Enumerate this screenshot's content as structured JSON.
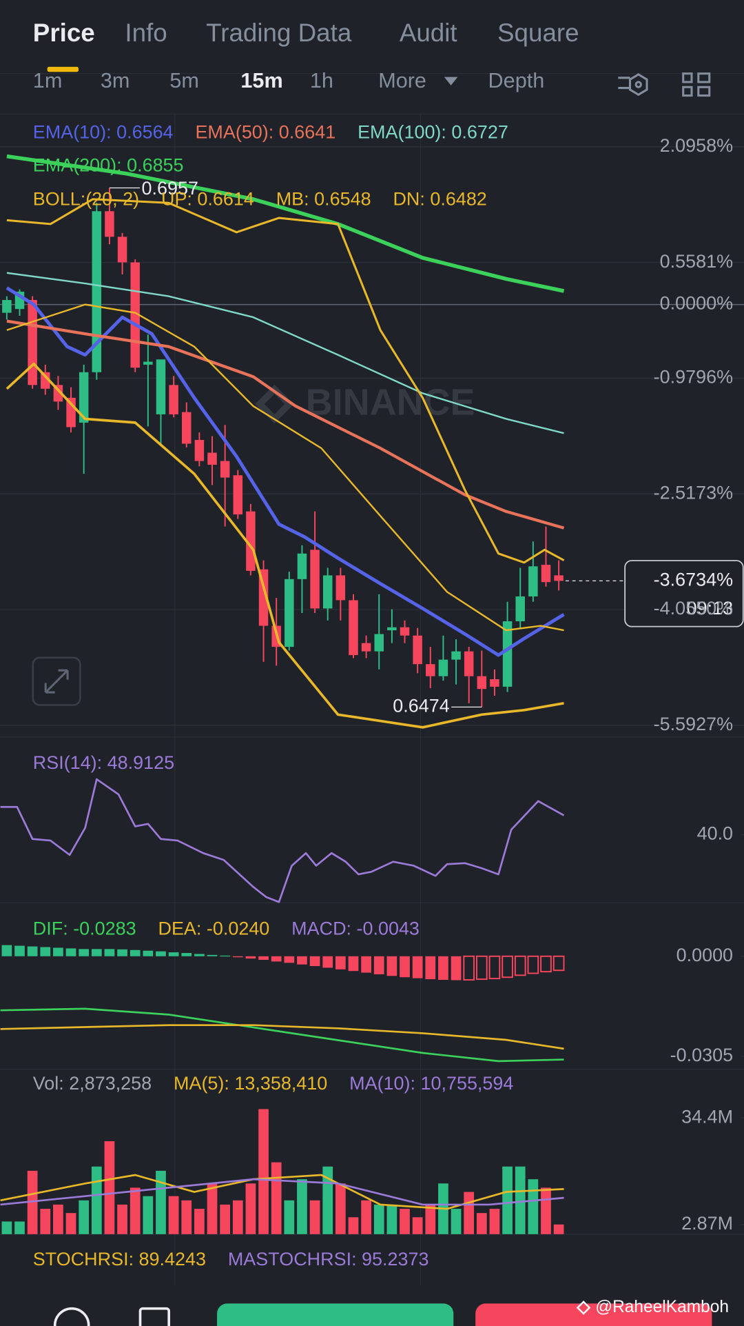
{
  "tabs": [
    "Price",
    "Info",
    "Trading Data",
    "Audit",
    "Square"
  ],
  "intervals": [
    "1m",
    "3m",
    "5m",
    "15m",
    "1h",
    "More",
    "Depth"
  ],
  "watermark": "BINANCE",
  "credit": "@RaheelKamboh",
  "stoch_legend": [
    {
      "text": "STOCHRSI: 89.4243",
      "color": "#e8b82a"
    },
    {
      "text": "MASTOCHRSI: 95.2373",
      "color": "#9b7ad8"
    }
  ],
  "chart_data": [
    {
      "type": "candlestick",
      "xlim": [
        -0.53,
        57.43
      ],
      "ylim": [
        -5.75,
        2.53
      ],
      "grid": true,
      "yticks": [
        {
          "value": 2.0958,
          "label": "2.0958%"
        },
        {
          "value": 0.5581,
          "label": "0.5581%"
        },
        {
          "value": 0,
          "label": "0.0000%"
        },
        {
          "value": -0.9796,
          "label": "-0.9796%"
        },
        {
          "value": -2.5173,
          "label": "-2.5173%"
        },
        {
          "value": -4.055,
          "label": "-4.0550%"
        },
        {
          "value": -5.5927,
          "label": "-5.5927%"
        }
      ],
      "up_color": "#2ebd85",
      "down_color": "#f6465d",
      "candles": [
        [
          -0.11,
          0.11,
          -0.2,
          0.06
        ],
        [
          -0.06,
          0.2,
          -0.15,
          0.17
        ],
        [
          0.06,
          0.11,
          -1.12,
          -1.07
        ],
        [
          -0.9,
          -0.8,
          -1.2,
          -1.12
        ],
        [
          -1.07,
          -0.95,
          -1.4,
          -1.29
        ],
        [
          -1.24,
          -1.1,
          -1.7,
          -1.63
        ],
        [
          -1.57,
          -0.8,
          -2.25,
          -0.9
        ],
        [
          -0.9,
          1.35,
          -1.0,
          1.24
        ],
        [
          1.24,
          1.55,
          0.8,
          0.9
        ],
        [
          0.9,
          0.95,
          0.4,
          0.56
        ],
        [
          0.56,
          0.6,
          -0.9,
          -0.84
        ],
        [
          -0.8,
          -0.4,
          -1.62,
          -0.76
        ],
        [
          -1.46,
          -0.75,
          -1.85,
          -0.73
        ],
        [
          -1.07,
          -0.95,
          -1.5,
          -1.46
        ],
        [
          -1.43,
          -1.3,
          -1.9,
          -1.85
        ],
        [
          -1.8,
          -1.7,
          -2.15,
          -2.08
        ],
        [
          -1.97,
          -1.75,
          -2.4,
          -2.13
        ],
        [
          -2.08,
          -1.6,
          -2.95,
          -2.3
        ],
        [
          -2.27,
          -2.2,
          -2.85,
          -2.79
        ],
        [
          -2.75,
          -2.65,
          -3.6,
          -3.54
        ],
        [
          -3.52,
          -3.4,
          -4.75,
          -4.27
        ],
        [
          -4.27,
          -3.9,
          -4.8,
          -4.55
        ],
        [
          -4.55,
          -3.55,
          -4.6,
          -3.65
        ],
        [
          -3.65,
          -3.2,
          -4.1,
          -3.31
        ],
        [
          -3.26,
          -2.75,
          -4.1,
          -4.04
        ],
        [
          -4.04,
          -3.5,
          -4.2,
          -3.6
        ],
        [
          -3.6,
          -3.5,
          -4.2,
          -3.93
        ],
        [
          -3.93,
          -3.85,
          -4.7,
          -4.66
        ],
        [
          -4.5,
          -4.4,
          -4.7,
          -4.61
        ],
        [
          -4.61,
          -3.85,
          -4.85,
          -4.38
        ],
        [
          -4.33,
          -4.05,
          -4.5,
          -4.29
        ],
        [
          -4.29,
          -4.2,
          -4.5,
          -4.4
        ],
        [
          -4.4,
          -4.3,
          -4.9,
          -4.78
        ],
        [
          -4.78,
          -4.55,
          -5.1,
          -4.94
        ],
        [
          -4.94,
          -4.4,
          -5.0,
          -4.72
        ],
        [
          -4.72,
          -4.45,
          -5.05,
          -4.61
        ],
        [
          -4.61,
          -4.55,
          -5.3,
          -4.94
        ],
        [
          -4.94,
          -4.6,
          -5.35,
          -5.11
        ],
        [
          -4.98,
          -4.85,
          -5.2,
          -5.08
        ],
        [
          -5.08,
          -3.95,
          -5.15,
          -4.21
        ],
        [
          -4.21,
          -3.5,
          -4.3,
          -3.88
        ],
        [
          -3.88,
          -3.15,
          -3.95,
          -3.48
        ],
        [
          -3.46,
          -2.95,
          -3.75,
          -3.69
        ],
        [
          -3.6,
          -3.4,
          -3.8,
          -3.6734
        ]
      ],
      "series": [
        {
          "name": "EMA(10): 0.6564",
          "color": "#5563e8",
          "x": [
            0,
            2.1,
            4.7,
            6.1,
            9.0,
            11.3,
            14.6,
            17.9,
            21.2,
            23.2,
            25.8,
            29.1,
            32.4,
            35.7,
            38.3,
            40.3,
            43.4
          ],
          "values": [
            0.22,
            0,
            -0.56,
            -0.67,
            -0.17,
            -0.39,
            -1.24,
            -2.02,
            -2.92,
            -3.09,
            -3.37,
            -3.71,
            -4.04,
            -4.38,
            -4.66,
            -4.44,
            -4.12
          ]
        },
        {
          "name": "EMA(50): 0.6641",
          "color": "#e8735a",
          "x": [
            0,
            6.1,
            12.6,
            19.2,
            22.5,
            29.1,
            35.7,
            38.9,
            43.4
          ],
          "values": [
            -0.22,
            -0.39,
            -0.56,
            -0.96,
            -1.35,
            -1.91,
            -2.53,
            -2.75,
            -2.97
          ]
        },
        {
          "name": "EMA(100): 0.6727",
          "color": "#7fd8c8",
          "x": [
            0,
            6.1,
            12.6,
            19.2,
            25.8,
            32.4,
            38.9,
            43.4
          ],
          "values": [
            0.42,
            0.28,
            0.11,
            -0.17,
            -0.67,
            -1.18,
            -1.52,
            -1.71
          ]
        },
        {
          "name": "EMA(200): 0.6855",
          "color": "#3cd15b",
          "x": [
            0,
            9.3,
            19.2,
            25.8,
            32.4,
            38.9,
            43.4
          ],
          "values": [
            1.97,
            1.74,
            1.4,
            1.07,
            0.62,
            0.34,
            0.18
          ]
        },
        {
          "name": "UP: 0.6614",
          "color": "#e8b82a",
          "x": [
            0,
            3.4,
            6.7,
            12.6,
            17.9,
            21.2,
            25.8,
            29.1,
            32.4,
            35.7,
            38.3,
            40.3,
            41.9,
            43.4
          ],
          "values": [
            1.12,
            1.07,
            1.4,
            1.35,
            0.96,
            1.15,
            1.07,
            -0.34,
            -1.24,
            -2.47,
            -3.31,
            -3.43,
            -3.26,
            -3.4
          ]
        },
        {
          "name": "MB: 0.6548",
          "color": "#e8b82a",
          "x": [
            0,
            6.1,
            10,
            14.6,
            19.2,
            24.5,
            29.1,
            34.3,
            38.9,
            41.6,
            43.4
          ],
          "values": [
            -0.34,
            0,
            -0.11,
            -0.56,
            -1.35,
            -1.91,
            -2.81,
            -3.82,
            -4.33,
            -4.27,
            -4.33
          ]
        },
        {
          "name": "DN: 0.6482",
          "color": "#e8b82a",
          "x": [
            0,
            2.1,
            6.1,
            10,
            14.6,
            19.2,
            21.2,
            25.8,
            32.4,
            37,
            40.3,
            43.4
          ],
          "values": [
            -1.12,
            -0.79,
            -1.52,
            -1.57,
            -2.25,
            -3.26,
            -4.49,
            -5.45,
            -5.62,
            -5.45,
            -5.39,
            -5.3
          ]
        }
      ],
      "boll_label": "BOLL:(20, 2)",
      "high_label": "0.6957",
      "low_label": "0.6474",
      "price_tag": {
        "value": -3.6734,
        "label": "-3.6734%",
        "countdown": "09:13"
      }
    },
    {
      "type": "line",
      "xlim": [
        -0.53,
        57.43
      ],
      "ylim": [
        13,
        76
      ],
      "yticks": [
        {
          "value": 40,
          "label": "40.0"
        }
      ],
      "series": [
        {
          "name": "RSI(14): 48.9125",
          "color": "#9b7ad8",
          "x": [
            -0.5,
            0.8,
            2,
            3.4,
            4.9,
            6.1,
            7,
            8.7,
            10,
            11,
            12,
            13.3,
            15.3,
            16.9,
            19.2,
            20.2,
            21.2,
            22.2,
            23.3,
            24.1,
            25.3,
            26.4,
            27.4,
            28.4,
            30.1,
            31.7,
            33.4,
            34.3,
            35.7,
            37,
            38.3,
            39.3,
            41.4,
            43.4
          ],
          "values": [
            51,
            51,
            38.3,
            37.7,
            32,
            42.7,
            62,
            56,
            43.3,
            44.3,
            38.3,
            37.7,
            32.7,
            30,
            19.3,
            15.3,
            13.3,
            27.7,
            32.7,
            27.7,
            32.7,
            29.3,
            24.3,
            25.3,
            29.3,
            27.7,
            23.7,
            28.3,
            28.7,
            26.7,
            24.3,
            42,
            53.3,
            47.7
          ]
        }
      ]
    },
    {
      "type": "bar",
      "xlim": [
        -0.53,
        57.43
      ],
      "ylim": [
        -0.0345,
        0.0145
      ],
      "yticks": [
        {
          "value": 0,
          "label": "0.0000"
        },
        {
          "value": -0.0305,
          "label": "-0.0305"
        }
      ],
      "up_color": "#2ebd85",
      "down_color": "#f6465d",
      "histogram": {
        "name": "MACD: -0.0043",
        "color": "#9b7ad8",
        "values": [
          0.0034,
          0.0032,
          0.003,
          0.0028,
          0.0026,
          0.0024,
          0.0022,
          0.0022,
          0.0022,
          0.0021,
          0.0019,
          0.0017,
          0.0015,
          0.0012,
          0.001,
          0.0007,
          0.0004,
          0.0002,
          -0.0003,
          -0.0007,
          -0.0011,
          -0.0016,
          -0.002,
          -0.0025,
          -0.003,
          -0.0035,
          -0.004,
          -0.0045,
          -0.005,
          -0.0055,
          -0.006,
          -0.0064,
          -0.0067,
          -0.007,
          -0.0072,
          -0.0073,
          -0.0072,
          -0.007,
          -0.0068,
          -0.0064,
          -0.0058,
          -0.0052,
          -0.0047,
          -0.0043
        ]
      },
      "series": [
        {
          "name": "DIF: -0.0283",
          "color": "#3cd15b",
          "x": [
            -0.5,
            6.1,
            12.6,
            19.2,
            25.8,
            32.4,
            38.3,
            43.4
          ],
          "values": [
            -0.0165,
            -0.016,
            -0.0178,
            -0.0217,
            -0.0256,
            -0.0295,
            -0.032,
            -0.0315
          ]
        },
        {
          "name": "DEA: -0.0240",
          "color": "#e8b82a",
          "x": [
            -0.5,
            12.6,
            19.2,
            25.8,
            32.4,
            38.9,
            43.4
          ],
          "values": [
            -0.0222,
            -0.021,
            -0.021,
            -0.022,
            -0.0235,
            -0.0255,
            -0.0282
          ]
        }
      ]
    },
    {
      "type": "bar",
      "xlim": [
        -0.53,
        57.43
      ],
      "ylim": [
        0,
        40000000
      ],
      "yticks": [
        {
          "value": 34400000,
          "label": "34.4M"
        },
        {
          "value": 2870000,
          "label": "2.87M"
        }
      ],
      "up_color": "#2ebd85",
      "down_color": "#f6465d",
      "histogram": {
        "name": "Vol: 2,873,258",
        "color": "#a0a6b0",
        "values": [
          3750000,
          3750000,
          18750000,
          7500000,
          8750000,
          6250000,
          10000000,
          20000000,
          27500000,
          8750000,
          13750000,
          11250000,
          18750000,
          11250000,
          10000000,
          7500000,
          15000000,
          8750000,
          10000000,
          15000000,
          37000000,
          21250000,
          10000000,
          16250000,
          10000000,
          20000000,
          15000000,
          5000000,
          10000000,
          8750000,
          8750000,
          7500000,
          5000000,
          8750000,
          15000000,
          7500000,
          12500000,
          6250000,
          7500000,
          20000000,
          20000000,
          16250000,
          13750000,
          2873258
        ]
      },
      "series": [
        {
          "name": "MA(5): 13,358,410",
          "color": "#e8b82a",
          "x": [
            -0.5,
            6.1,
            10,
            14.6,
            19.2,
            24.5,
            29.1,
            34.3,
            38.9,
            43.4
          ],
          "values": [
            10000000,
            15000000,
            17500000,
            12500000,
            16250000,
            17500000,
            8750000,
            7500000,
            12500000,
            13358410
          ]
        },
        {
          "name": "MA(10): 10,755,594",
          "color": "#9b7ad8",
          "x": [
            -0.5,
            6.1,
            12.6,
            19.2,
            25.8,
            32.4,
            37.6,
            43.4
          ],
          "values": [
            8750000,
            11250000,
            13750000,
            16250000,
            15000000,
            8750000,
            8750000,
            10755594
          ]
        }
      ]
    }
  ]
}
